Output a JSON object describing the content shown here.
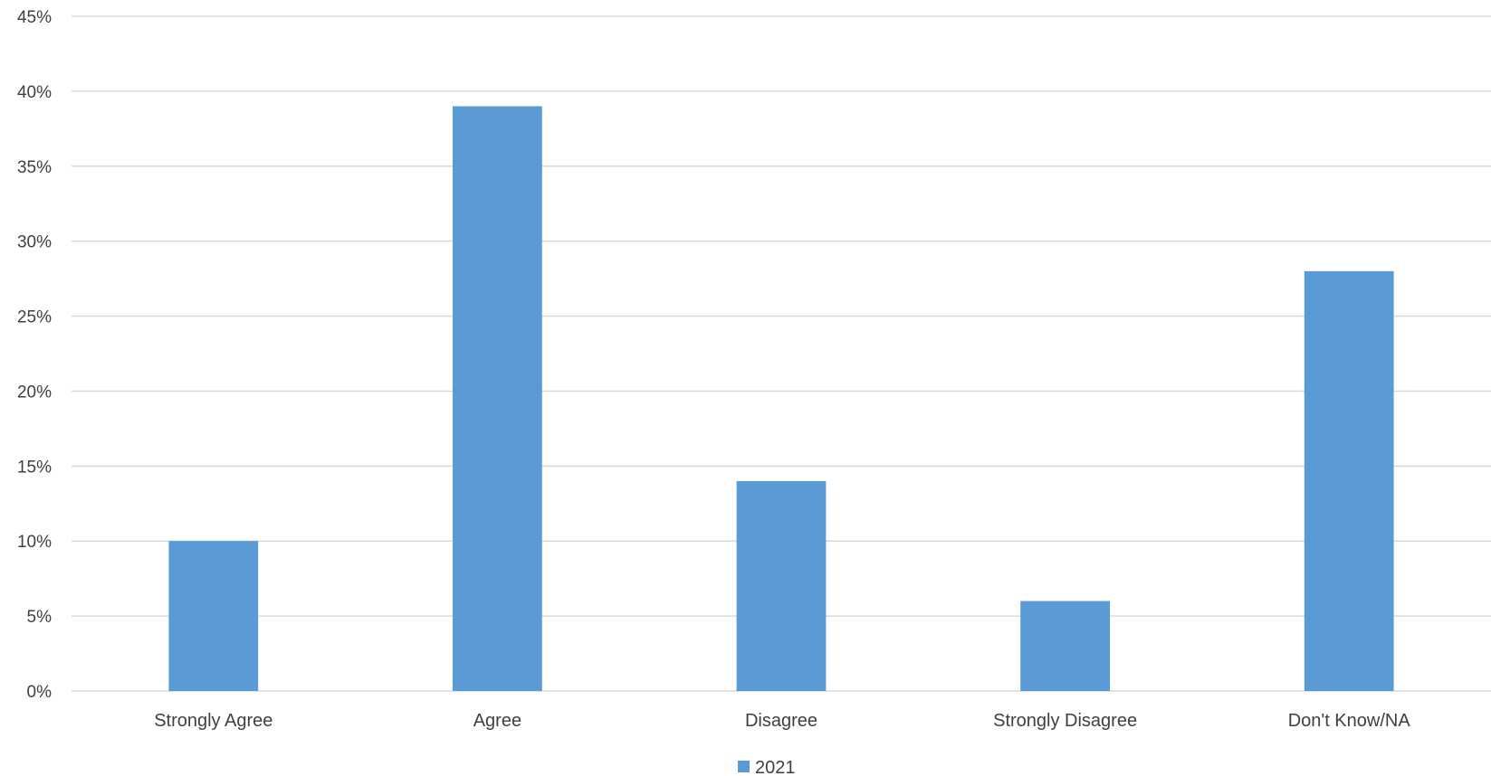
{
  "chart_data": {
    "type": "bar",
    "title": "",
    "xlabel": "",
    "ylabel": "",
    "categories": [
      "Strongly Agree",
      "Agree",
      "Disagree",
      "Strongly Disagree",
      "Don't Know/NA"
    ],
    "series": [
      {
        "name": "2021",
        "values": [
          10,
          39,
          14,
          6,
          28
        ],
        "color": "#5b9bd5"
      }
    ],
    "ylim": [
      0,
      45
    ],
    "y_ticks": [
      0,
      5,
      10,
      15,
      20,
      25,
      30,
      35,
      40,
      45
    ],
    "y_tick_format": "percent",
    "grid": true,
    "legend_position": "bottom"
  }
}
